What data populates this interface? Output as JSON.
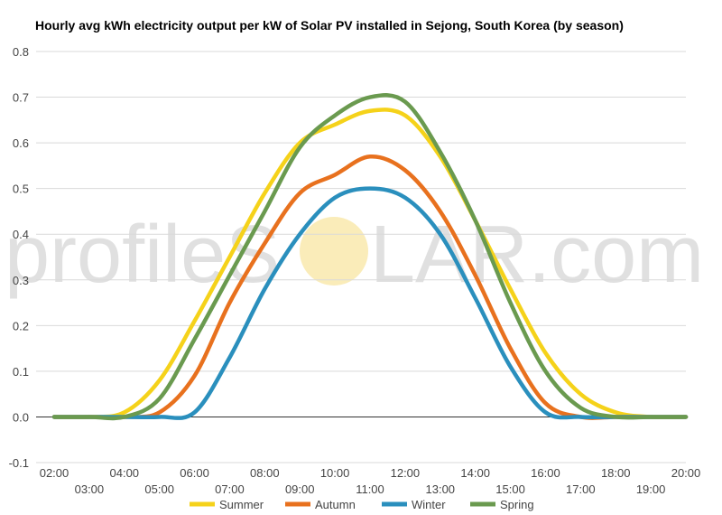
{
  "watermark": {
    "text_left": "profileS",
    "text_right": "LAR.com",
    "sun_color": "#f6df8a"
  },
  "chart_data": {
    "type": "line",
    "title": "Hourly avg kWh electricity output per kW of Solar PV installed in Sejong, South Korea (by season)",
    "xlabel": "",
    "ylabel": "",
    "x": [
      "02:00",
      "03:00",
      "04:00",
      "05:00",
      "06:00",
      "07:00",
      "08:00",
      "09:00",
      "10:00",
      "11:00",
      "12:00",
      "13:00",
      "14:00",
      "15:00",
      "16:00",
      "17:00",
      "18:00",
      "19:00",
      "20:00"
    ],
    "x_tick_labels_upper": [
      "02:00",
      "04:00",
      "06:00",
      "08:00",
      "10:00",
      "12:00",
      "14:00",
      "16:00",
      "18:00",
      "20:00"
    ],
    "x_tick_labels_lower": [
      "03:00",
      "05:00",
      "07:00",
      "09:00",
      "11:00",
      "13:00",
      "15:00",
      "17:00",
      "19:00"
    ],
    "ylim": [
      -0.1,
      0.8
    ],
    "yticks": [
      "-0.1",
      "0.0",
      "0.1",
      "0.2",
      "0.3",
      "0.4",
      "0.5",
      "0.6",
      "0.7",
      "0.8"
    ],
    "grid": true,
    "legend_position": "bottom",
    "series": [
      {
        "name": "Summer",
        "color": "#f5d21a",
        "values": [
          0,
          0,
          0.01,
          0.08,
          0.21,
          0.35,
          0.49,
          0.6,
          0.64,
          0.67,
          0.66,
          0.57,
          0.43,
          0.28,
          0.14,
          0.05,
          0.01,
          0,
          0
        ]
      },
      {
        "name": "Autumn",
        "color": "#e8711e",
        "values": [
          0,
          0,
          0,
          0.01,
          0.09,
          0.25,
          0.38,
          0.49,
          0.53,
          0.57,
          0.54,
          0.45,
          0.31,
          0.15,
          0.03,
          0,
          0,
          0,
          0
        ]
      },
      {
        "name": "Winter",
        "color": "#2a8fbd",
        "values": [
          0,
          0,
          0,
          0,
          0.01,
          0.13,
          0.28,
          0.4,
          0.48,
          0.5,
          0.48,
          0.4,
          0.26,
          0.11,
          0.01,
          0,
          0,
          0,
          0
        ]
      },
      {
        "name": "Spring",
        "color": "#6a9a4f",
        "values": [
          0,
          0,
          0,
          0.04,
          0.17,
          0.31,
          0.45,
          0.59,
          0.66,
          0.7,
          0.69,
          0.58,
          0.43,
          0.25,
          0.1,
          0.02,
          0,
          0,
          0
        ]
      }
    ]
  }
}
